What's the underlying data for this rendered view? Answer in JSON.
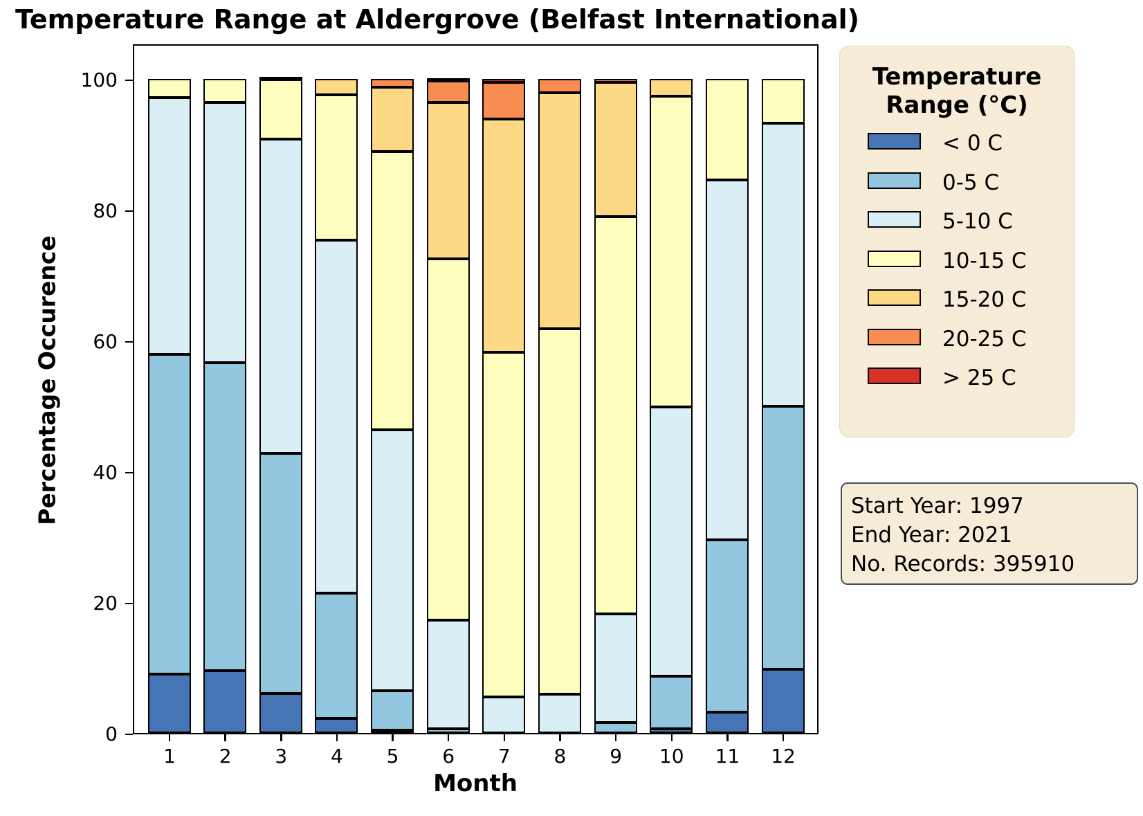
{
  "title": "Temperature Range at Aldergrove (Belfast International)",
  "chart_data": {
    "type": "stacked_bar",
    "title": "Temperature Range at Aldergrove (Belfast International)",
    "xlabel": "Month",
    "ylabel": "Percentage Occurence",
    "categories": [
      "1",
      "2",
      "3",
      "4",
      "5",
      "6",
      "7",
      "8",
      "9",
      "10",
      "11",
      "12"
    ],
    "y_ticks": [
      0,
      20,
      40,
      60,
      80,
      100
    ],
    "ylim": [
      0,
      105.5
    ],
    "grid": false,
    "legend_position": "right",
    "units": "percent",
    "series": [
      {
        "name": "< 0 C",
        "color": "#4575b4",
        "values": [
          9.0,
          9.5,
          6.0,
          2.2,
          0.4,
          0.0,
          0.0,
          0.0,
          0.0,
          0.6,
          3.2,
          9.7
        ]
      },
      {
        "name": "0-5 C",
        "color": "#92c5de",
        "values": [
          48.9,
          47.1,
          36.8,
          19.2,
          6.1,
          0.6,
          0.0,
          0.0,
          1.6,
          8.1,
          26.3,
          40.3
        ]
      },
      {
        "name": "5-10 C",
        "color": "#d9eef5",
        "values": [
          39.2,
          39.8,
          48.0,
          53.9,
          39.8,
          16.6,
          5.5,
          5.9,
          16.6,
          41.1,
          55.1,
          43.2
        ]
      },
      {
        "name": "10-15 C",
        "color": "#feffbf",
        "values": [
          2.9,
          3.6,
          9.1,
          22.3,
          42.6,
          55.3,
          52.7,
          55.9,
          60.7,
          47.6,
          15.4,
          6.8
        ]
      },
      {
        "name": "15-20 C",
        "color": "#fdd985",
        "values": [
          0.0,
          0.0,
          0.1,
          2.4,
          9.8,
          23.9,
          35.7,
          36.1,
          20.6,
          2.6,
          0.0,
          0.0
        ]
      },
      {
        "name": "20-25 C",
        "color": "#f88c51",
        "values": [
          0.0,
          0.0,
          0.0,
          0.0,
          1.3,
          3.3,
          5.6,
          2.1,
          0.5,
          0.0,
          0.0,
          0.0
        ]
      },
      {
        "name": "> 25 C",
        "color": "#d73027",
        "values": [
          0.0,
          0.0,
          0.0,
          0.0,
          0.0,
          0.3,
          0.5,
          0.0,
          0.0,
          0.0,
          0.0,
          0.0
        ]
      }
    ]
  },
  "legend": {
    "title": "Temperature\nRange (°C)"
  },
  "info_box": {
    "line1": "Start Year: 1997",
    "line2": "End Year: 2021",
    "line3": "No. Records: 395910"
  }
}
